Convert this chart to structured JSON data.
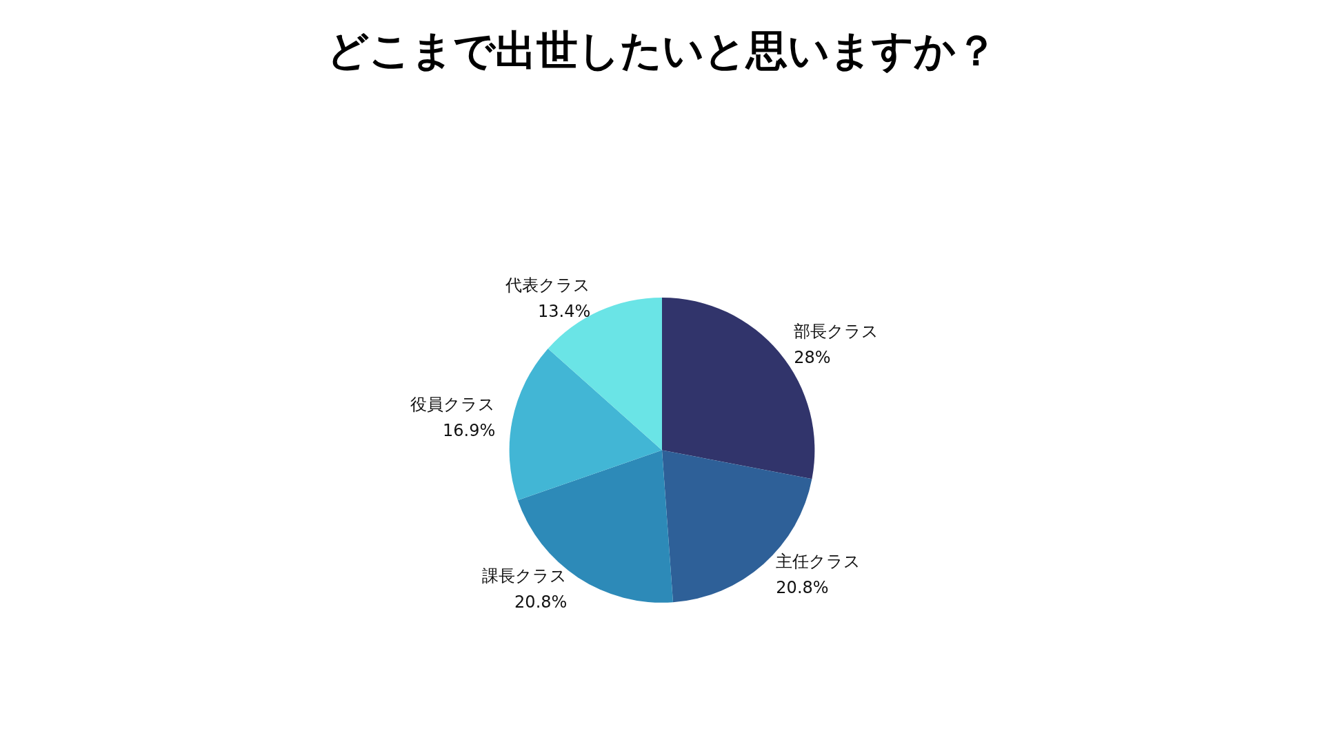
{
  "chart_data": {
    "type": "pie",
    "title": "どこまで出世したいと思いますか？",
    "categories": [
      "部長クラス",
      "主任クラス",
      "課長クラス",
      "役員クラス",
      "代表クラス"
    ],
    "values": [
      28,
      20.8,
      20.8,
      16.9,
      13.4
    ],
    "value_labels": [
      "28%",
      "20.8%",
      "20.8%",
      "16.9%",
      "13.4%"
    ],
    "colors": [
      "#31346b",
      "#2e6098",
      "#2d8ab8",
      "#42b6d5",
      "#6ae4e6"
    ],
    "legend": false
  }
}
